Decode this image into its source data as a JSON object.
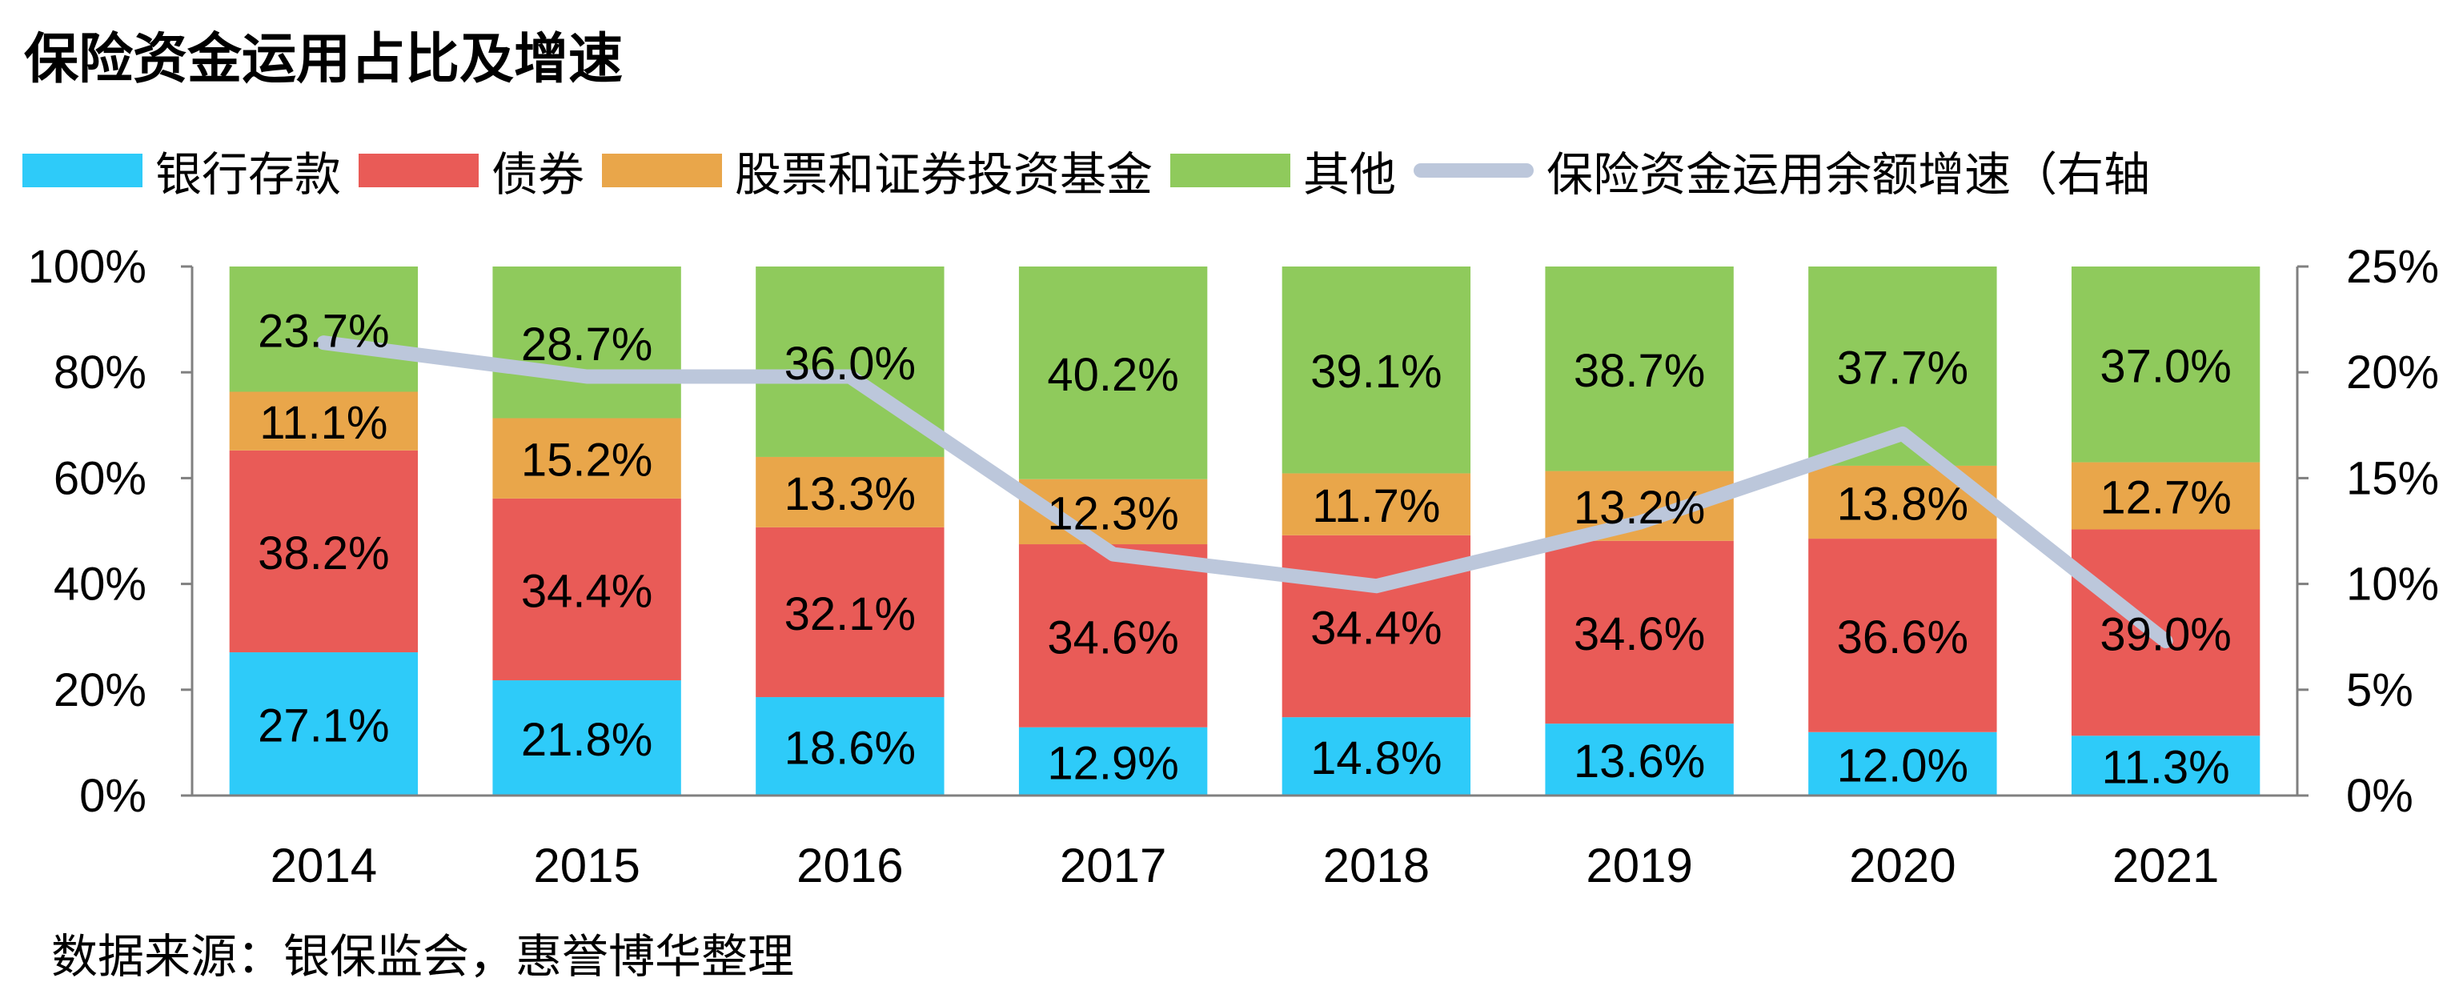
{
  "title": "保险资金运用占比及增速",
  "source_note": "数据来源：银保监会，惠誉博华整理",
  "chart_data": {
    "type": "bar",
    "stacked": true,
    "title": "保险资金运用占比及增速",
    "categories": [
      "2014",
      "2015",
      "2016",
      "2017",
      "2018",
      "2019",
      "2020",
      "2021"
    ],
    "series": [
      {
        "name": "银行存款",
        "color": "#2ecbf9",
        "values": [
          27.1,
          21.8,
          18.6,
          12.9,
          14.8,
          13.6,
          12.0,
          11.3
        ],
        "labels": [
          "27.1%",
          "21.8%",
          "18.6%",
          "12.9%",
          "14.8%",
          "13.6%",
          "12.0%",
          "11.3%"
        ]
      },
      {
        "name": "债券",
        "color": "#e95b57",
        "values": [
          38.2,
          34.4,
          32.1,
          34.6,
          34.4,
          34.6,
          36.6,
          39.0
        ],
        "labels": [
          "38.2%",
          "34.4%",
          "32.1%",
          "34.6%",
          "34.4%",
          "34.6%",
          "36.6%",
          "39.0%"
        ]
      },
      {
        "name": "股票和证券投资基金",
        "color": "#e9a64a",
        "values": [
          11.1,
          15.2,
          13.3,
          12.3,
          11.7,
          13.2,
          13.8,
          12.7
        ],
        "labels": [
          "11.1%",
          "15.2%",
          "13.3%",
          "12.3%",
          "11.7%",
          "13.2%",
          "13.8%",
          "12.7%"
        ]
      },
      {
        "name": "其他",
        "color": "#8fca5c",
        "values": [
          23.7,
          28.7,
          36.0,
          40.2,
          39.1,
          38.7,
          37.7,
          37.0
        ],
        "labels": [
          "23.7%",
          "28.7%",
          "36.0%",
          "40.2%",
          "39.1%",
          "38.7%",
          "37.7%",
          "37.0%"
        ]
      }
    ],
    "line_series": {
      "name": "保险资金运用余额增速（右轴",
      "color": "#bcc7db",
      "axis": "right",
      "values": [
        21.4,
        19.8,
        19.8,
        11.4,
        9.9,
        12.9,
        17.1,
        7.3
      ]
    },
    "left_axis": {
      "ylim": [
        0,
        100
      ],
      "ticks": [
        0,
        20,
        40,
        60,
        80,
        100
      ],
      "tick_labels": [
        "0%",
        "20%",
        "40%",
        "60%",
        "80%",
        "100%"
      ]
    },
    "right_axis": {
      "ylim": [
        0,
        25
      ],
      "ticks": [
        0,
        5,
        10,
        15,
        20,
        25
      ],
      "tick_labels": [
        "0%",
        "5%",
        "10%",
        "15%",
        "20%",
        "25%"
      ]
    },
    "grid": false,
    "legend_position": "top"
  }
}
